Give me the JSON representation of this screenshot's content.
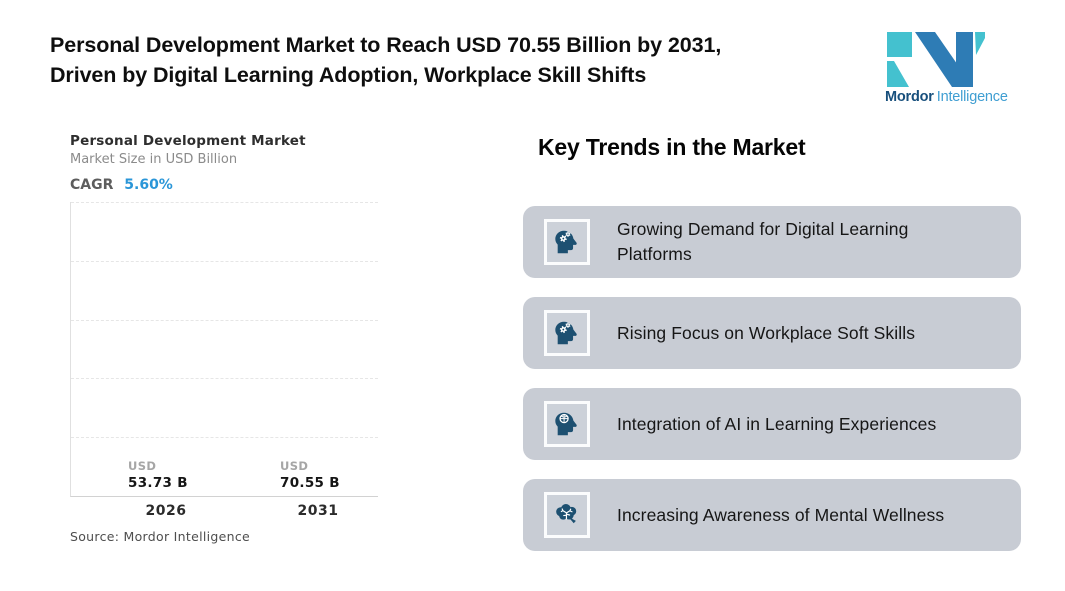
{
  "header": {
    "headline_line1": "Personal Development Market to Reach USD 70.55 Billion by 2031,",
    "headline_line2": "Driven by Digital Learning Adoption, Workplace Skill Shifts",
    "logo": {
      "brand_bold": "Mordor",
      "brand_light": "Intelligence",
      "mark_blue": "#2e7cb5",
      "mark_teal": "#44c1cf"
    }
  },
  "chart": {
    "title": "Personal Development Market",
    "subtitle": "Market Size in USD Billion",
    "cagr_label": "CAGR",
    "cagr_value": "5.60%",
    "unit_label": "USD",
    "bars": [
      {
        "year": "2026",
        "value_label": "53.73 B",
        "value": 53.73,
        "height_pct": 61.6
      },
      {
        "year": "2031",
        "value_label": "70.55 B",
        "value": 70.55,
        "height_pct": 80.9
      }
    ],
    "source": "Source: Mordor Intelligence",
    "colors": {
      "bar_gradient_top": "#529dca",
      "bar_gradient_bottom": "#47c6ce",
      "cagr_blue": "#2a96d8"
    }
  },
  "chart_data": {
    "type": "bar",
    "title": "Personal Development Market",
    "subtitle": "Market Size in USD Billion",
    "categories": [
      "2026",
      "2031"
    ],
    "values": [
      53.73,
      70.55
    ],
    "data_labels": [
      "USD 53.73 B",
      "USD 70.55 B"
    ],
    "cagr": "5.60%",
    "ylabel": "Market Size in USD Billion",
    "ylim": [
      0,
      87
    ],
    "grid": "horizontal dashed, unlabeled ticks",
    "legend": "none",
    "source": "Source: Mordor Intelligence"
  },
  "trends": {
    "heading": "Key Trends in the Market",
    "card_bg": "#c8ccd4",
    "icon_color": "#1d5071",
    "items": [
      {
        "icon": "head-gears-icon",
        "text": "Growing Demand for Digital Learning Platforms"
      },
      {
        "icon": "head-gears-icon",
        "text": "Rising Focus on Workplace Soft Skills"
      },
      {
        "icon": "head-brain-icon",
        "text": "Integration of AI in Learning Experiences"
      },
      {
        "icon": "brain-icon",
        "text": "Increasing Awareness of Mental Wellness"
      }
    ]
  }
}
